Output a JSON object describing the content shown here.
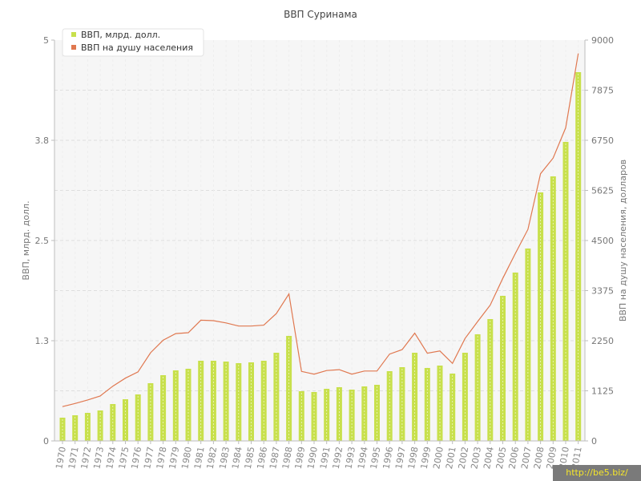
{
  "chart_data": {
    "type": "bar+line",
    "title": "ВВП Суринама",
    "y_left_label": "ВВП, млрд. долл.",
    "y_right_label": "ВВП на душу населения, долларов",
    "y_left_ticks": [
      "0",
      "1.3",
      "2.5",
      "3.8",
      "5"
    ],
    "y_left_range": [
      0,
      5
    ],
    "y_right_ticks": [
      "0",
      "1125",
      "2250",
      "3375",
      "4500",
      "5625",
      "6750",
      "7875",
      "9000"
    ],
    "y_right_range": [
      0,
      9000
    ],
    "categories": [
      "1970",
      "1971",
      "1972",
      "1973",
      "1974",
      "1975",
      "1976",
      "1977",
      "1978",
      "1979",
      "1980",
      "1981",
      "1982",
      "1983",
      "1984",
      "1985",
      "1986",
      "1987",
      "1988",
      "1989",
      "1990",
      "1991",
      "1992",
      "1993",
      "1994",
      "1995",
      "1996",
      "1997",
      "1998",
      "1999",
      "2000",
      "2001",
      "2002",
      "2003",
      "2004",
      "2005",
      "2006",
      "2007",
      "2008",
      "2009",
      "2010",
      "2011"
    ],
    "legend_position": "top-left",
    "grid": true,
    "series": [
      {
        "name": "ВВП, млрд. долл.",
        "kind": "bar",
        "axis": "left",
        "color": "#c8e04c",
        "values": [
          0.29,
          0.32,
          0.35,
          0.38,
          0.46,
          0.52,
          0.58,
          0.72,
          0.82,
          0.88,
          0.9,
          1.0,
          1.0,
          0.99,
          0.97,
          0.98,
          1.0,
          1.1,
          1.31,
          0.62,
          0.61,
          0.65,
          0.67,
          0.64,
          0.68,
          0.7,
          0.87,
          0.92,
          1.1,
          0.91,
          0.94,
          0.84,
          1.1,
          1.33,
          1.52,
          1.81,
          2.1,
          2.4,
          3.1,
          3.3,
          3.73,
          4.6
        ]
      },
      {
        "name": "ВВП на душу населения",
        "kind": "line",
        "axis": "right",
        "color": "#e07850",
        "values": [
          770,
          840,
          920,
          1010,
          1230,
          1410,
          1550,
          1980,
          2260,
          2410,
          2430,
          2710,
          2700,
          2650,
          2580,
          2580,
          2600,
          2860,
          3300,
          1560,
          1500,
          1580,
          1600,
          1500,
          1570,
          1570,
          1950,
          2050,
          2420,
          1970,
          2020,
          1740,
          2300,
          2680,
          3050,
          3650,
          4210,
          4750,
          6000,
          6350,
          7030,
          8700
        ]
      }
    ]
  },
  "watermark": "http://be5.biz/"
}
